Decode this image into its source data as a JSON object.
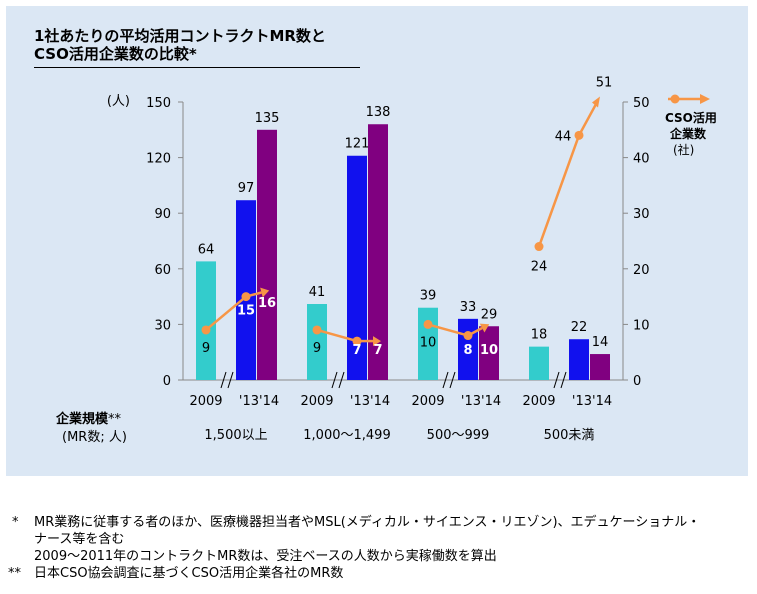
{
  "title_line1": "1社あたりの平均活用コントラクトMR数と",
  "title_line2": "CSO活用企業数の比較*",
  "chart_data": {
    "type": "bar",
    "left_axis": {
      "unit": "(人)",
      "ticks": [
        0,
        30,
        60,
        90,
        120,
        150
      ],
      "ylim": [
        0,
        150
      ]
    },
    "right_axis": {
      "ticks": [
        0,
        10,
        20,
        30,
        40,
        50
      ],
      "ylim": [
        0,
        50
      ]
    },
    "groups": [
      {
        "label": "1,500以上",
        "bars": [
          {
            "year": "2009",
            "value": 64,
            "color": "#33cccc"
          },
          {
            "year": "'13",
            "value": 97,
            "color": "#1111ee"
          },
          {
            "year": "'14",
            "value": 135,
            "color": "#800080"
          }
        ],
        "companies": [
          9,
          15,
          16
        ]
      },
      {
        "label": "1,000～1,499",
        "bars": [
          {
            "year": "2009",
            "value": 41,
            "color": "#33cccc"
          },
          {
            "year": "'13",
            "value": 121,
            "color": "#1111ee"
          },
          {
            "year": "'14",
            "value": 138,
            "color": "#800080"
          }
        ],
        "companies": [
          9,
          7,
          7
        ]
      },
      {
        "label": "500～999",
        "bars": [
          {
            "year": "2009",
            "value": 39,
            "color": "#33cccc"
          },
          {
            "year": "'13",
            "value": 33,
            "color": "#1111ee"
          },
          {
            "year": "'14",
            "value": 29,
            "color": "#800080"
          }
        ],
        "companies": [
          10,
          8,
          10
        ]
      },
      {
        "label": "500未満",
        "bars": [
          {
            "year": "2009",
            "value": 18,
            "color": "#33cccc"
          },
          {
            "year": "'13",
            "value": 22,
            "color": "#1111ee"
          },
          {
            "year": "'14",
            "value": 14,
            "color": "#800080"
          }
        ],
        "companies": [
          24,
          44,
          51
        ]
      }
    ],
    "legend": {
      "line1": "CSO活用",
      "line2": "企業数",
      "line3": "(社)",
      "placement": "top-right",
      "line_color": "#f79646"
    },
    "x_axis_title_line1": "企業規模",
    "x_axis_title_mark": "**",
    "x_axis_title_line2": "(MR数; 人)"
  },
  "notes": [
    {
      "mark": "*",
      "text": "MR業務に従事する者のほか、医療機器担当者やMSL(メディカル・サイエンス・リエゾン)、エデュケーショナル・"
    },
    {
      "mark": "",
      "text": "ナース等を含む"
    },
    {
      "mark": "",
      "text": "2009～2011年のコントラクトMR数は、受注ベースの人数から実稼働数を算出"
    },
    {
      "mark": "**",
      "text": "日本CSO協会調査に基づくCSO活用企業各社のMR数"
    }
  ]
}
